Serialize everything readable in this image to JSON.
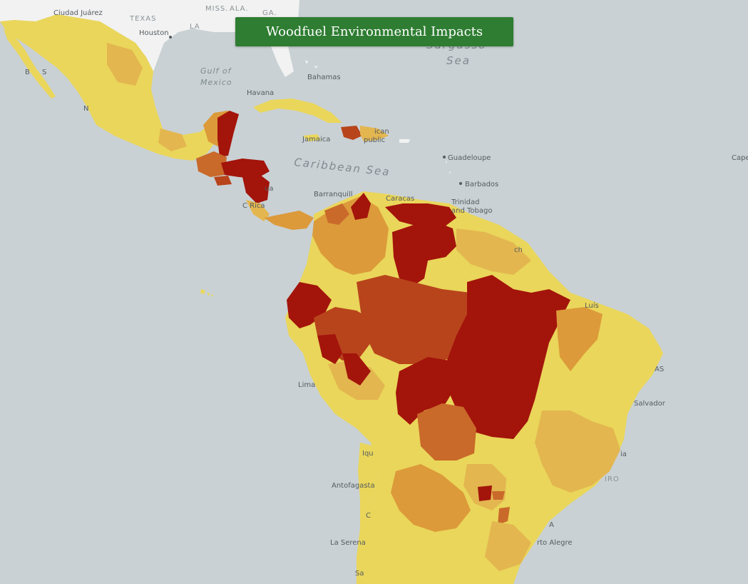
{
  "header": {
    "title": "Woodfuel Environmental Impacts"
  },
  "colors": {
    "ocean": "#c9d1d4",
    "land_other": "#f2f2f2",
    "impact_lowest": "#ead65a",
    "impact_low": "#e3b650",
    "impact_medium": "#dc9a3a",
    "impact_high": "#c9692a",
    "impact_very_high": "#b8441c",
    "impact_highest": "#a3140b",
    "title_bg": "#2e7d32"
  },
  "labels": {
    "ciudad_juarez": "Ciudad Juárez",
    "texas": "TEXAS",
    "miss": "MISS.",
    "ala": "ALA.",
    "ga": "GA.",
    "la": "LA",
    "houston": "Houston",
    "gulf_line1": "Gulf of",
    "gulf_line2": "Mexico",
    "havana": "Havana",
    "bahamas": "Bahamas",
    "sargasso_line1": "Sargasso",
    "sargasso_line2": "Sea",
    "jamaica": "Jamaica",
    "rep_line1": "ican",
    "rep_line2": "public",
    "guadeloupe": "Guadeloupe",
    "barbados": "Barbados",
    "trinidad_line1": "Trinidad",
    "trinidad_line2": "and Tobago",
    "caribbean": "Caribbean Sea",
    "cape": "Cape",
    "barranquilla": "Barranquill",
    "caracas": "Caracas",
    "costa_rica": "C  Rica",
    "nicaragua": "ua",
    "ch": "ch",
    "sao_luis": "Luís",
    "as": "AS",
    "lima": "Lima",
    "salvador": "Salvador",
    "iqu": "Iqu",
    "ia": "ia",
    "iro": "IRO",
    "antofagasta": "Antofagasta",
    "c_chile": "C",
    "a_label": "A",
    "la_serena": "La Serena",
    "porto_alegre": "rto Alegre",
    "sa": "Sa",
    "baja_b": "B",
    "baja_s": "S",
    "n_label": "N"
  }
}
